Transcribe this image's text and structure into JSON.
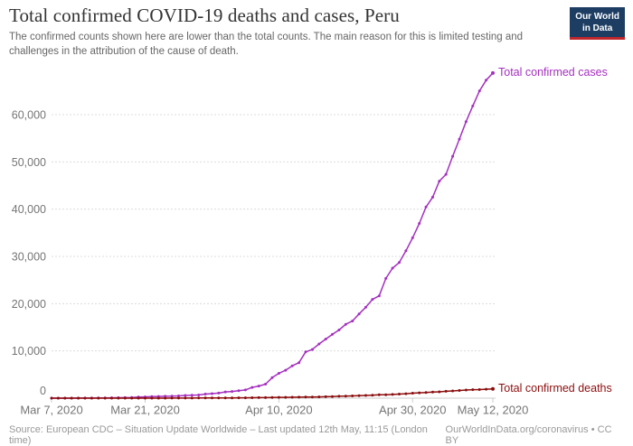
{
  "header": {
    "title": "Total confirmed COVID-19 deaths and cases, Peru",
    "subtitle": "The confirmed counts shown here are lower than the total counts. The main reason for this is limited testing and challenges in the attribution of the cause of death.",
    "logo": {
      "line1": "Our World",
      "line2": "in Data",
      "bg_color": "#1d3d63",
      "stripe_color": "#c0272d"
    }
  },
  "chart_data": {
    "type": "line",
    "title": "Total confirmed COVID-19 deaths and cases, Peru",
    "xlabel": "",
    "ylabel": "",
    "x_range": [
      "Mar 7, 2020",
      "May 12, 2020"
    ],
    "ylim": [
      0,
      70000
    ],
    "grid": true,
    "marker": "dot",
    "y_ticks": [
      {
        "value": 0,
        "label": "0"
      },
      {
        "value": 10000,
        "label": "10,000"
      },
      {
        "value": 20000,
        "label": "20,000"
      },
      {
        "value": 30000,
        "label": "30,000"
      },
      {
        "value": 40000,
        "label": "40,000"
      },
      {
        "value": 50000,
        "label": "50,000"
      },
      {
        "value": 60000,
        "label": "60,000"
      }
    ],
    "x_ticks": [
      {
        "label": "Mar 7, 2020",
        "day": 0
      },
      {
        "label": "Mar 21, 2020",
        "day": 14
      },
      {
        "label": "Apr 10, 2020",
        "day": 34
      },
      {
        "label": "Apr 30, 2020",
        "day": 54
      },
      {
        "label": "May 12, 2020",
        "day": 66
      }
    ],
    "dates": [
      "2020-03-07",
      "2020-03-08",
      "2020-03-09",
      "2020-03-10",
      "2020-03-11",
      "2020-03-12",
      "2020-03-13",
      "2020-03-14",
      "2020-03-15",
      "2020-03-16",
      "2020-03-17",
      "2020-03-18",
      "2020-03-19",
      "2020-03-20",
      "2020-03-21",
      "2020-03-22",
      "2020-03-23",
      "2020-03-24",
      "2020-03-25",
      "2020-03-26",
      "2020-03-27",
      "2020-03-28",
      "2020-03-29",
      "2020-03-30",
      "2020-03-31",
      "2020-04-01",
      "2020-04-02",
      "2020-04-03",
      "2020-04-04",
      "2020-04-05",
      "2020-04-06",
      "2020-04-07",
      "2020-04-08",
      "2020-04-09",
      "2020-04-10",
      "2020-04-11",
      "2020-04-12",
      "2020-04-13",
      "2020-04-14",
      "2020-04-15",
      "2020-04-16",
      "2020-04-17",
      "2020-04-18",
      "2020-04-19",
      "2020-04-20",
      "2020-04-21",
      "2020-04-22",
      "2020-04-23",
      "2020-04-24",
      "2020-04-25",
      "2020-04-26",
      "2020-04-27",
      "2020-04-28",
      "2020-04-29",
      "2020-04-30",
      "2020-05-01",
      "2020-05-02",
      "2020-05-03",
      "2020-05-04",
      "2020-05-05",
      "2020-05-06",
      "2020-05-07",
      "2020-05-08",
      "2020-05-09",
      "2020-05-10",
      "2020-05-11",
      "2020-05-12"
    ],
    "series": [
      {
        "name": "Total confirmed cases",
        "color": "#a430bf",
        "values": [
          1,
          1,
          6,
          9,
          11,
          17,
          22,
          38,
          43,
          71,
          86,
          117,
          145,
          234,
          263,
          318,
          363,
          395,
          416,
          480,
          580,
          635,
          671,
          852,
          950,
          1065,
          1323,
          1414,
          1595,
          1746,
          2281,
          2561,
          2954,
          4342,
          5256,
          5897,
          6848,
          7519,
          9784,
          10303,
          11475,
          12491,
          13489,
          14420,
          15628,
          16325,
          17837,
          19250,
          20914,
          21648,
          25331,
          27517,
          28699,
          31190,
          33931,
          36976,
          40459,
          42534,
          45928,
          47372,
          51189,
          54817,
          58526,
          61847,
          65015,
          67307,
          68822
        ]
      },
      {
        "name": "Total confirmed deaths",
        "color": "#8c0e0e",
        "values": [
          0,
          0,
          0,
          0,
          0,
          0,
          0,
          0,
          0,
          0,
          0,
          0,
          1,
          3,
          4,
          5,
          7,
          9,
          11,
          16,
          18,
          24,
          30,
          36,
          41,
          47,
          55,
          61,
          73,
          83,
          92,
          107,
          121,
          138,
          169,
          181,
          193,
          216,
          230,
          254,
          274,
          300,
          348,
          400,
          445,
          484,
          530,
          572,
          634,
          700,
          728,
          782,
          854,
          943,
          1051,
          1124,
          1200,
          1286,
          1344,
          1444,
          1533,
          1627,
          1714,
          1800,
          1814,
          1889,
          1961
        ]
      }
    ],
    "legend_position": "end-of-line-labels",
    "axis_text_color": "#757575",
    "gridline_color": "#dcdcdc"
  },
  "footer": {
    "source": "Source: European CDC – Situation Update Worldwide – Last updated 12th May, 11:15 (London time)",
    "credit": "OurWorldInData.org/coronavirus • CC BY"
  }
}
